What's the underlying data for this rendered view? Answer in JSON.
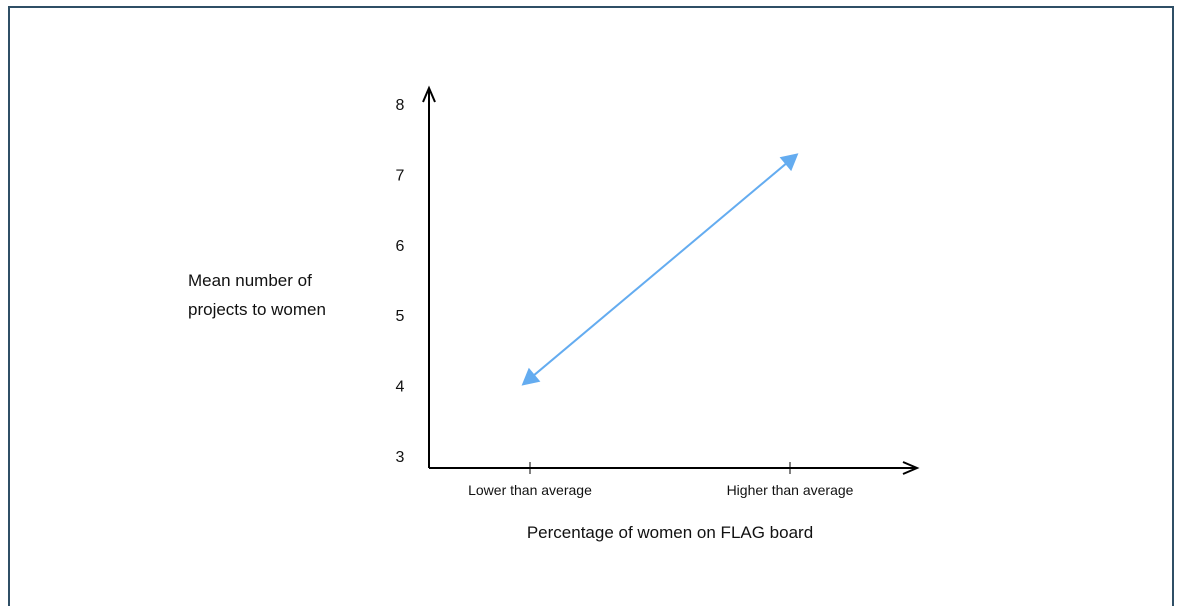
{
  "chart_data": {
    "type": "line",
    "categories": [
      "Lower than average",
      "Higher than average"
    ],
    "series": [
      {
        "values": [
          4.1,
          7.2
        ],
        "color": "#64acf0",
        "marker": "triangle"
      }
    ],
    "title": "",
    "xlabel": "Percentage of women on FLAG board",
    "ylabel": [
      "Mean number of",
      "projects to women"
    ],
    "ylim": [
      3,
      8
    ],
    "yticks": [
      3,
      4,
      5,
      6,
      7,
      8
    ],
    "grid": false,
    "legend": "none",
    "axis_color": "#000000"
  }
}
